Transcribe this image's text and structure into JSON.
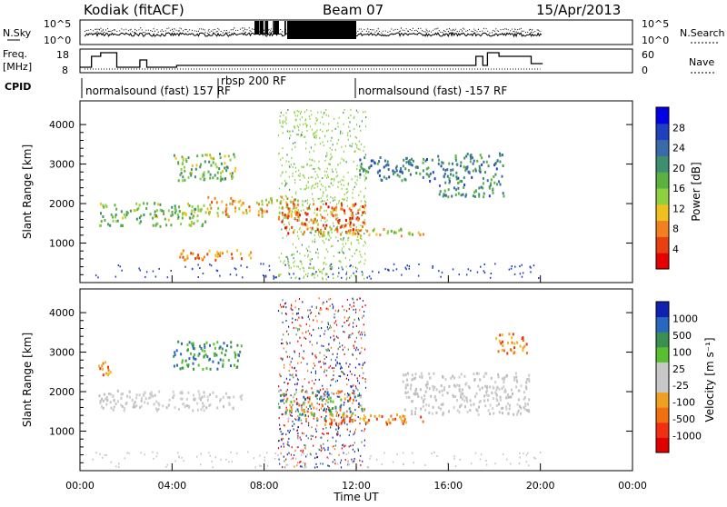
{
  "header": {
    "radar": "Kodiak (fitACF)",
    "beam": "Beam 07",
    "date": "15/Apr/2013"
  },
  "strip_labels": {
    "nsky": "N.Sky",
    "nsearch": "N.Search",
    "freq": "Freq.",
    "freq_unit": "[MHz]",
    "nave": "Nave",
    "cpid": "CPID",
    "nsky_ticks": [
      "10^5",
      "10^0"
    ],
    "nsearch_ticks": [
      "10^5",
      "10^0"
    ],
    "freq_ticks": [
      "18",
      "8"
    ],
    "nave_ticks": [
      "60",
      "0"
    ]
  },
  "cpid": {
    "segments": [
      "normalsound (fast) 157 RF",
      "rbsp 200 RF",
      "normalsound (fast) -157 RF"
    ]
  },
  "chart_data": [
    {
      "type": "heatmap",
      "name": "power",
      "ylabel": "Slant Range [km]",
      "xlabel": "",
      "x_range_hours": [
        0,
        24
      ],
      "ylim": [
        0,
        4600
      ],
      "y_ticks": [
        "1000",
        "2000",
        "3000",
        "4000"
      ],
      "colorbar": {
        "label": "Power [dB]",
        "ticks": [
          "4",
          "8",
          "12",
          "16",
          "20",
          "24",
          "28"
        ],
        "colors": [
          "#0000e6",
          "#2040c0",
          "#3a6aa8",
          "#3d8f70",
          "#5ab040",
          "#8fd040",
          "#f0c020",
          "#f08020",
          "#e84010",
          "#e60000"
        ]
      },
      "echo_regions": [
        {
          "t": [
            0.8,
            5.5
          ],
          "range": [
            1450,
            2050
          ],
          "level": 14
        },
        {
          "t": [
            5.5,
            9.5
          ],
          "range": [
            1700,
            2200
          ],
          "level": 20
        },
        {
          "t": [
            8.6,
            12.4
          ],
          "range": [
            1250,
            2050
          ],
          "level": 24
        },
        {
          "t": [
            4.0,
            6.8
          ],
          "range": [
            2600,
            3300
          ],
          "level": 14
        },
        {
          "t": [
            4.3,
            7.4
          ],
          "range": [
            600,
            880
          ],
          "level": 22
        },
        {
          "t": [
            12.0,
            15.4
          ],
          "range": [
            2600,
            3200
          ],
          "level": 8
        },
        {
          "t": [
            15.5,
            18.4
          ],
          "range": [
            2200,
            3300
          ],
          "level": 9
        },
        {
          "t": [
            10.2,
            15.0
          ],
          "range": [
            1200,
            1400
          ],
          "level": 18
        }
      ]
    },
    {
      "type": "heatmap",
      "name": "velocity",
      "ylabel": "Slant Range [km]",
      "xlabel": "Time UT",
      "x_range_hours": [
        0,
        24
      ],
      "ylim": [
        0,
        4600
      ],
      "y_ticks": [
        "1000",
        "2000",
        "3000",
        "4000"
      ],
      "colorbar": {
        "label": "Velocity [m s⁻¹]",
        "ticks": [
          "1000",
          "500",
          "100",
          "25",
          "-25",
          "-100",
          "-500",
          "-1000"
        ],
        "colors": [
          "#1020b0",
          "#2868c0",
          "#3a9050",
          "#58c030",
          "#c8c8c8",
          "#c8c8c8",
          "#f0a020",
          "#f07010",
          "#f03010",
          "#e00000"
        ]
      },
      "x_ticks": [
        "00:00",
        "04:00",
        "08:00",
        "12:00",
        "16:00",
        "20:00",
        "00:00"
      ],
      "echo_regions": [
        {
          "t": [
            0.8,
            7.0
          ],
          "range": [
            1550,
            2050
          ],
          "level": "ground"
        },
        {
          "t": [
            8.6,
            12.4
          ],
          "range": [
            1300,
            2050
          ],
          "level": "mixed"
        },
        {
          "t": [
            10.5,
            15.0
          ],
          "range": [
            1200,
            1450
          ],
          "level": "negative"
        },
        {
          "t": [
            4.0,
            7.0
          ],
          "range": [
            2600,
            3300
          ],
          "level": "positive"
        },
        {
          "t": [
            14.0,
            19.5
          ],
          "range": [
            1450,
            2500
          ],
          "level": "ground"
        },
        {
          "t": [
            0.6,
            1.3
          ],
          "range": [
            2400,
            2800
          ],
          "level": "negative"
        },
        {
          "t": [
            18.0,
            19.4
          ],
          "range": [
            3000,
            3500
          ],
          "level": "negative"
        }
      ]
    }
  ]
}
